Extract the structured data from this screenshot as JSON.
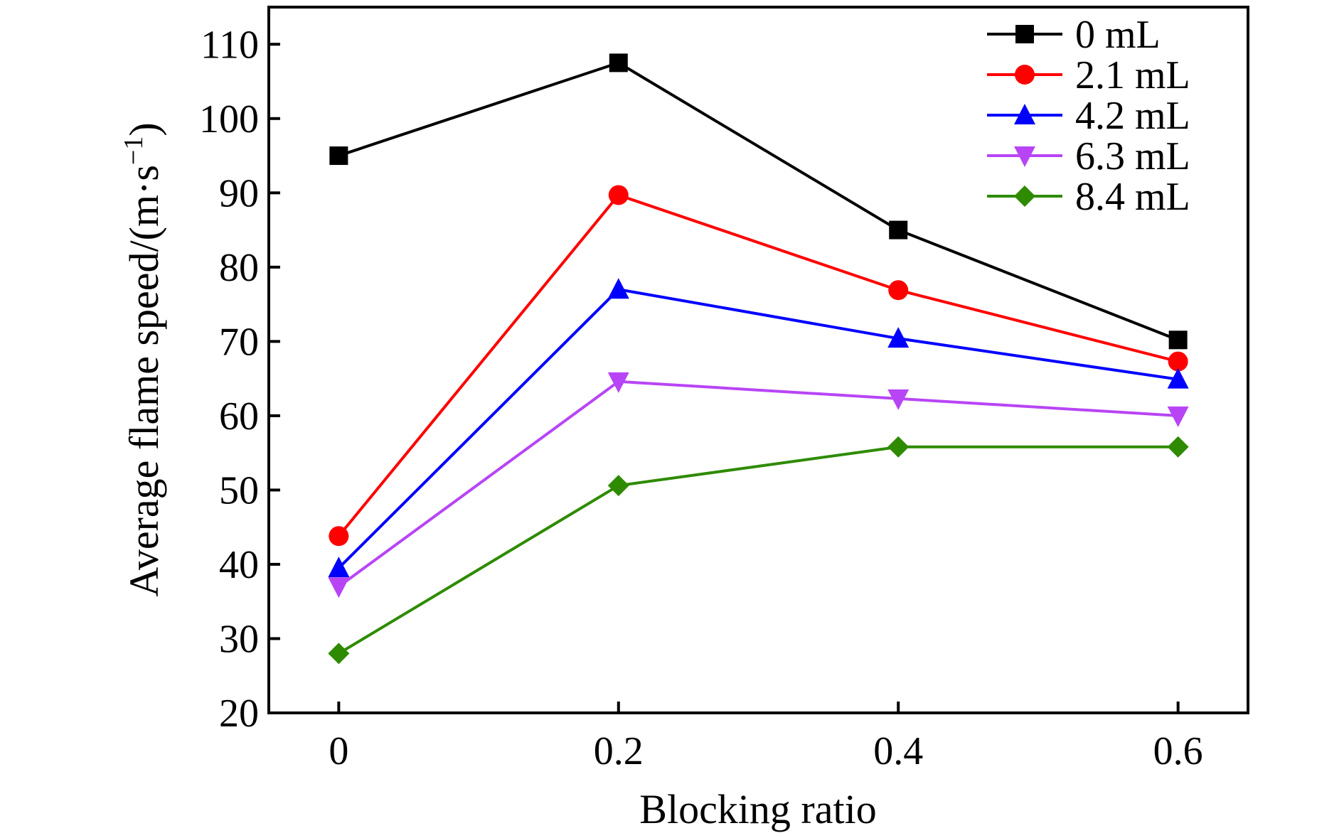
{
  "chart_data": {
    "type": "line",
    "xlabel": "Blocking ratio",
    "ylabel": "Average flame speed/(m·s",
    "ylabel_sup": "−1",
    "ylabel_close": ")",
    "x": [
      0,
      0.2,
      0.4,
      0.6
    ],
    "x_tick_labels": [
      "0",
      "0.2",
      "0.4",
      "0.6"
    ],
    "xlim": [
      -0.05,
      0.65
    ],
    "ylim": [
      20,
      115
    ],
    "y_ticks": [
      20,
      30,
      40,
      50,
      60,
      70,
      80,
      90,
      100,
      110
    ],
    "y_tick_labels": [
      "20",
      "30",
      "40",
      "50",
      "60",
      "70",
      "80",
      "90",
      "100",
      "110"
    ],
    "grid": false,
    "legend_position": "top-right",
    "series": [
      {
        "name": "0 mL",
        "values": [
          95,
          107.5,
          85,
          70.2
        ],
        "color": "#000000",
        "marker": "square"
      },
      {
        "name": "2.1 mL",
        "values": [
          43.8,
          89.7,
          76.9,
          67.3
        ],
        "color": "#ff0000",
        "marker": "circle"
      },
      {
        "name": "4.2 mL",
        "values": [
          39.5,
          77,
          70.4,
          64.9
        ],
        "color": "#0000ff",
        "marker": "triangle-up"
      },
      {
        "name": "6.3 mL",
        "values": [
          37,
          64.6,
          62.3,
          60
        ],
        "color": "#b845f5",
        "marker": "triangle-down"
      },
      {
        "name": "8.4 mL",
        "values": [
          28,
          50.6,
          55.8,
          55.8
        ],
        "color": "#2e8b00",
        "marker": "diamond"
      }
    ]
  }
}
